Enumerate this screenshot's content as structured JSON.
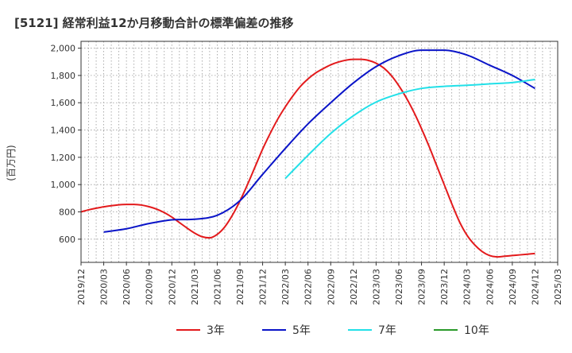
{
  "chart_data": {
    "type": "line",
    "title": "[5121]  経常利益12か月移動合計の標準偏差の推移",
    "ylabel": "(百万円)",
    "xlabel": "",
    "ylim": [
      430,
      2050
    ],
    "yticks": [
      600,
      800,
      1000,
      1200,
      1400,
      1600,
      1800,
      2000
    ],
    "ytick_labels": [
      "600",
      "800",
      "1,000",
      "1,200",
      "1,400",
      "1,600",
      "1,800",
      "2,000"
    ],
    "x_start": "2019/12",
    "x_end": "2025/03",
    "xtick_labels": [
      "2019/12",
      "2020/03",
      "2020/06",
      "2020/09",
      "2020/12",
      "2021/03",
      "2021/06",
      "2021/09",
      "2021/12",
      "2022/03",
      "2022/06",
      "2022/09",
      "2022/12",
      "2023/03",
      "2023/06",
      "2023/09",
      "2023/12",
      "2024/03",
      "2024/06",
      "2024/09",
      "2024/12",
      "2025/03"
    ],
    "grid": true,
    "legend_position": "bottom",
    "series": [
      {
        "name": "3年",
        "color": "#e31a1c",
        "x": [
          "2019/12",
          "2020/01",
          "2020/02",
          "2020/03",
          "2020/04",
          "2020/05",
          "2020/06",
          "2020/07",
          "2020/08",
          "2020/09",
          "2020/10",
          "2020/11",
          "2020/12",
          "2021/01",
          "2021/02",
          "2021/03",
          "2021/04",
          "2021/05",
          "2021/06",
          "2021/07",
          "2021/08",
          "2021/09",
          "2021/10",
          "2021/11",
          "2021/12",
          "2022/01",
          "2022/02",
          "2022/03",
          "2022/04",
          "2022/05",
          "2022/06",
          "2022/07",
          "2022/08",
          "2022/09",
          "2022/10",
          "2022/11",
          "2022/12",
          "2023/01",
          "2023/02",
          "2023/03",
          "2023/04",
          "2023/05",
          "2023/06",
          "2023/07",
          "2023/08",
          "2023/09",
          "2023/10",
          "2023/11",
          "2023/12",
          "2024/01",
          "2024/02",
          "2024/03",
          "2024/04",
          "2024/05",
          "2024/06",
          "2024/07",
          "2024/08",
          "2024/09",
          "2024/10",
          "2024/11",
          "2024/12"
        ],
        "values": [
          800,
          815,
          827,
          837,
          845,
          852,
          855,
          855,
          850,
          838,
          820,
          795,
          762,
          722,
          682,
          645,
          618,
          610,
          635,
          690,
          775,
          880,
          1000,
          1130,
          1260,
          1375,
          1480,
          1570,
          1650,
          1720,
          1775,
          1818,
          1850,
          1878,
          1898,
          1912,
          1918,
          1918,
          1910,
          1890,
          1855,
          1800,
          1725,
          1635,
          1530,
          1410,
          1280,
          1140,
          1000,
          860,
          730,
          630,
          560,
          510,
          480,
          470,
          475,
          480,
          485,
          490,
          495
        ],
        "n": 61
      },
      {
        "name": "5年",
        "color": "#0a14c8",
        "x": [
          "2020/03",
          "2020/06",
          "2020/09",
          "2020/12",
          "2021/03",
          "2021/06",
          "2021/09",
          "2021/12",
          "2022/03",
          "2022/06",
          "2022/09",
          "2022/12",
          "2023/03",
          "2023/06",
          "2023/09",
          "2023/12",
          "2024/03",
          "2024/06",
          "2024/09",
          "2024/12"
        ],
        "values": [
          652,
          676,
          715,
          742,
          746,
          775,
          882,
          1075,
          1265,
          1445,
          1600,
          1745,
          1865,
          1945,
          1985,
          1985,
          1950,
          1875,
          1800,
          1705
        ]
      },
      {
        "name": "7年",
        "color": "#22e0e8",
        "x": [
          "2022/03",
          "2022/06",
          "2022/09",
          "2022/12",
          "2023/03",
          "2023/06",
          "2023/09",
          "2023/12",
          "2024/03",
          "2024/06",
          "2024/09",
          "2024/12"
        ],
        "values": [
          1045,
          1215,
          1375,
          1505,
          1605,
          1665,
          1705,
          1720,
          1728,
          1738,
          1748,
          1770
        ]
      },
      {
        "name": "10年",
        "color": "#2a9a2a",
        "x": [],
        "values": []
      }
    ]
  }
}
